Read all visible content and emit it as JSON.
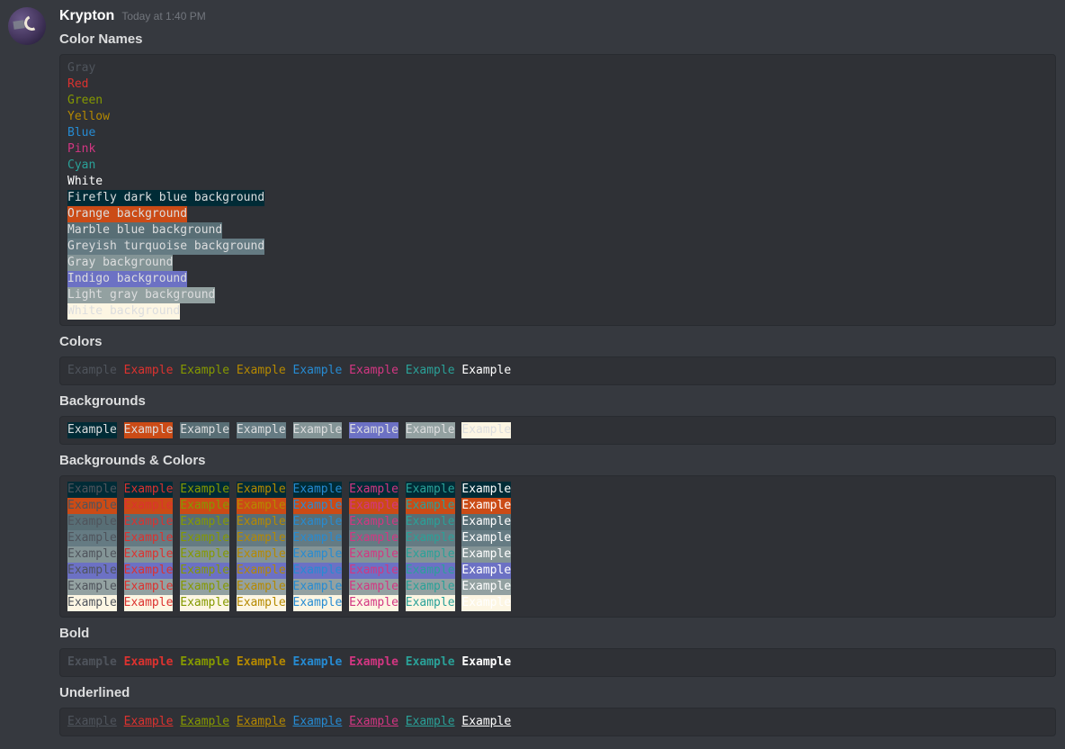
{
  "message": {
    "username": "Krypton",
    "timestamp": "Today at 1:40 PM"
  },
  "sections": {
    "color_names": {
      "heading": "Color Names"
    },
    "colors": {
      "heading": "Colors"
    },
    "backgrounds": {
      "heading": "Backgrounds"
    },
    "backgrounds_colors": {
      "heading": "Backgrounds & Colors"
    },
    "bold": {
      "heading": "Bold"
    },
    "underlined": {
      "heading": "Underlined"
    }
  },
  "example_word": "Example",
  "ansi": {
    "default_fg": "#dcddde",
    "colors": [
      {
        "name": "Gray",
        "hex": "#4f545c"
      },
      {
        "name": "Red",
        "hex": "#dc322f"
      },
      {
        "name": "Green",
        "hex": "#859900"
      },
      {
        "name": "Yellow",
        "hex": "#b58900"
      },
      {
        "name": "Blue",
        "hex": "#268bd2"
      },
      {
        "name": "Pink",
        "hex": "#d33682"
      },
      {
        "name": "Cyan",
        "hex": "#2aa198"
      },
      {
        "name": "White",
        "hex": "#ffffff"
      }
    ],
    "backgrounds": [
      {
        "name": "Firefly dark blue background",
        "hex": "#002b36"
      },
      {
        "name": "Orange background",
        "hex": "#cb4b16"
      },
      {
        "name": "Marble blue background",
        "hex": "#586e75"
      },
      {
        "name": "Greyish turquoise background",
        "hex": "#657b83"
      },
      {
        "name": "Gray background",
        "hex": "#839496"
      },
      {
        "name": "Indigo background",
        "hex": "#6c71c4"
      },
      {
        "name": "Light gray background",
        "hex": "#93a1a1"
      },
      {
        "name": "White background",
        "hex": "#fdf6e3"
      }
    ]
  },
  "theme": {
    "page_bg": "#36393f",
    "codeblock_bg": "#2f3136",
    "codeblock_border": "#282b30",
    "heading_color": "#dcddde",
    "timestamp_color": "#72767d"
  }
}
